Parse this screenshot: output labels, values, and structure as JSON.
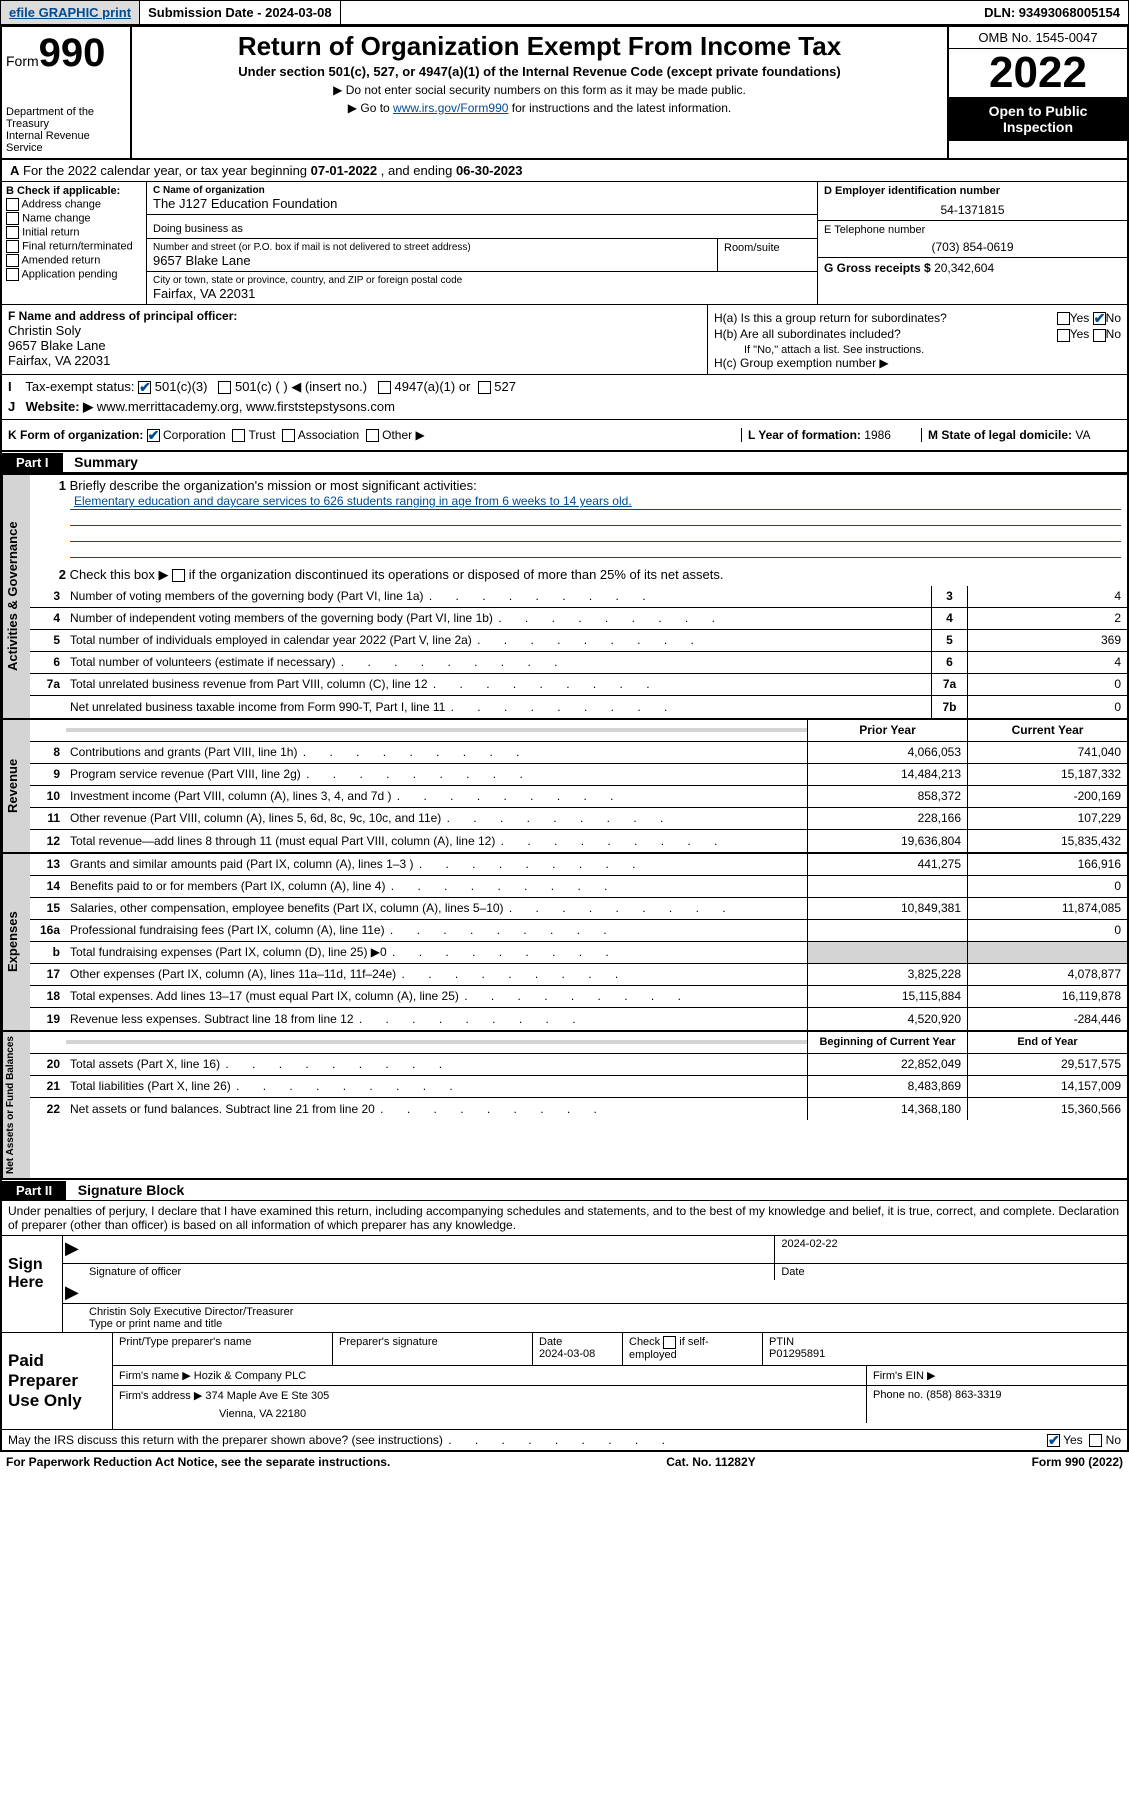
{
  "topbar": {
    "efile": "efile GRAPHIC print",
    "submission": "Submission Date - 2024-03-08",
    "dln": "DLN: 93493068005154"
  },
  "header": {
    "form_label": "Form",
    "form_num": "990",
    "title": "Return of Organization Exempt From Income Tax",
    "subtitle": "Under section 501(c), 527, or 4947(a)(1) of the Internal Revenue Code (except private foundations)",
    "note1": "▶ Do not enter social security numbers on this form as it may be made public.",
    "note2_pre": "▶ Go to ",
    "note2_link": "www.irs.gov/Form990",
    "note2_post": " for instructions and the latest information.",
    "dept": "Department of the Treasury",
    "irs": "Internal Revenue Service",
    "omb": "OMB No. 1545-0047",
    "year": "2022",
    "inspect": "Open to Public Inspection"
  },
  "rowA": {
    "pre": "For the 2022 calendar year, or tax year beginning ",
    "begin": "07-01-2022",
    "mid": " , and ending ",
    "end": "06-30-2023"
  },
  "sectionB": {
    "label": "B Check if applicable:",
    "opts": [
      "Address change",
      "Name change",
      "Initial return",
      "Final return/terminated",
      "Amended return",
      "Application pending"
    ]
  },
  "sectionC": {
    "name_lbl": "C Name of organization",
    "name": "The J127 Education Foundation",
    "dba_lbl": "Doing business as",
    "addr_lbl": "Number and street (or P.O. box if mail is not delivered to street address)",
    "addr": "9657 Blake Lane",
    "room_lbl": "Room/suite",
    "city_lbl": "City or town, state or province, country, and ZIP or foreign postal code",
    "city": "Fairfax, VA  22031"
  },
  "sectionD": {
    "lbl": "D Employer identification number",
    "val": "54-1371815"
  },
  "sectionE": {
    "lbl": "E Telephone number",
    "val": "(703) 854-0619"
  },
  "sectionG": {
    "lbl": "G Gross receipts $",
    "val": "20,342,604"
  },
  "sectionF": {
    "lbl": "F Name and address of principal officer:",
    "name": "Christin Soly",
    "addr": "9657 Blake Lane",
    "city": "Fairfax, VA  22031"
  },
  "sectionH": {
    "a": "H(a)  Is this a group return for subordinates?",
    "b": "H(b)  Are all subordinates included?",
    "bnote": "If \"No,\" attach a list. See instructions.",
    "c": "H(c)  Group exemption number ▶",
    "yes": "Yes",
    "no": "No"
  },
  "rowI": {
    "lbl": "Tax-exempt status:",
    "opts": [
      "501(c)(3)",
      "501(c) (  ) ◀ (insert no.)",
      "4947(a)(1) or",
      "527"
    ]
  },
  "rowJ": {
    "lbl": "Website: ▶",
    "val": "www.merrittacademy.org, www.firststepstysons.com"
  },
  "rowK": {
    "lbl": "K Form of organization:",
    "opts": [
      "Corporation",
      "Trust",
      "Association",
      "Other ▶"
    ]
  },
  "rowL": {
    "lbl": "L Year of formation:",
    "val": "1986"
  },
  "rowM": {
    "lbl": "M State of legal domicile:",
    "val": "VA"
  },
  "part1": {
    "hdr": "Part I",
    "title": "Summary",
    "line1_lbl": "Briefly describe the organization's mission or most significant activities:",
    "line1_val": "Elementary education and daycare services to 626 students ranging in age from 6 weeks to 14 years old.",
    "line2": "Check this box ▶         if the organization discontinued its operations or disposed of more than 25% of its net assets.",
    "rows_gov": [
      {
        "n": "3",
        "d": "Number of voting members of the governing body (Part VI, line 1a)",
        "b": "3",
        "v": "4"
      },
      {
        "n": "4",
        "d": "Number of independent voting members of the governing body (Part VI, line 1b)",
        "b": "4",
        "v": "2"
      },
      {
        "n": "5",
        "d": "Total number of individuals employed in calendar year 2022 (Part V, line 2a)",
        "b": "5",
        "v": "369"
      },
      {
        "n": "6",
        "d": "Total number of volunteers (estimate if necessary)",
        "b": "6",
        "v": "4"
      },
      {
        "n": "7a",
        "d": "Total unrelated business revenue from Part VIII, column (C), line 12",
        "b": "7a",
        "v": "0"
      },
      {
        "n": "",
        "d": "Net unrelated business taxable income from Form 990-T, Part I, line 11",
        "b": "7b",
        "v": "0"
      }
    ],
    "col_hdrs": {
      "prior": "Prior Year",
      "current": "Current Year"
    },
    "rows_rev": [
      {
        "n": "8",
        "d": "Contributions and grants (Part VIII, line 1h)",
        "p": "4,066,053",
        "c": "741,040"
      },
      {
        "n": "9",
        "d": "Program service revenue (Part VIII, line 2g)",
        "p": "14,484,213",
        "c": "15,187,332"
      },
      {
        "n": "10",
        "d": "Investment income (Part VIII, column (A), lines 3, 4, and 7d )",
        "p": "858,372",
        "c": "-200,169"
      },
      {
        "n": "11",
        "d": "Other revenue (Part VIII, column (A), lines 5, 6d, 8c, 9c, 10c, and 11e)",
        "p": "228,166",
        "c": "107,229"
      },
      {
        "n": "12",
        "d": "Total revenue—add lines 8 through 11 (must equal Part VIII, column (A), line 12)",
        "p": "19,636,804",
        "c": "15,835,432"
      }
    ],
    "rows_exp": [
      {
        "n": "13",
        "d": "Grants and similar amounts paid (Part IX, column (A), lines 1–3 )",
        "p": "441,275",
        "c": "166,916"
      },
      {
        "n": "14",
        "d": "Benefits paid to or for members (Part IX, column (A), line 4)",
        "p": "",
        "c": "0"
      },
      {
        "n": "15",
        "d": "Salaries, other compensation, employee benefits (Part IX, column (A), lines 5–10)",
        "p": "10,849,381",
        "c": "11,874,085"
      },
      {
        "n": "16a",
        "d": "Professional fundraising fees (Part IX, column (A), line 11e)",
        "p": "",
        "c": "0"
      },
      {
        "n": "b",
        "d": "Total fundraising expenses (Part IX, column (D), line 25) ▶0",
        "p": "shade",
        "c": "shade"
      },
      {
        "n": "17",
        "d": "Other expenses (Part IX, column (A), lines 11a–11d, 11f–24e)",
        "p": "3,825,228",
        "c": "4,078,877"
      },
      {
        "n": "18",
        "d": "Total expenses. Add lines 13–17 (must equal Part IX, column (A), line 25)",
        "p": "15,115,884",
        "c": "16,119,878"
      },
      {
        "n": "19",
        "d": "Revenue less expenses. Subtract line 18 from line 12",
        "p": "4,520,920",
        "c": "-284,446"
      }
    ],
    "col_hdrs2": {
      "begin": "Beginning of Current Year",
      "end": "End of Year"
    },
    "rows_net": [
      {
        "n": "20",
        "d": "Total assets (Part X, line 16)",
        "p": "22,852,049",
        "c": "29,517,575"
      },
      {
        "n": "21",
        "d": "Total liabilities (Part X, line 26)",
        "p": "8,483,869",
        "c": "14,157,009"
      },
      {
        "n": "22",
        "d": "Net assets or fund balances. Subtract line 21 from line 20",
        "p": "14,368,180",
        "c": "15,360,566"
      }
    ],
    "side_labels": {
      "gov": "Activities & Governance",
      "rev": "Revenue",
      "exp": "Expenses",
      "net": "Net Assets or Fund Balances"
    }
  },
  "part2": {
    "hdr": "Part II",
    "title": "Signature Block",
    "declaration": "Under penalties of perjury, I declare that I have examined this return, including accompanying schedules and statements, and to the best of my knowledge and belief, it is true, correct, and complete. Declaration of preparer (other than officer) is based on all information of which preparer has any knowledge.",
    "sign_here": "Sign Here",
    "sig_officer": "Signature of officer",
    "sig_date": "2024-02-22",
    "date_lbl": "Date",
    "officer_name": "Christin Soly  Executive Director/Treasurer",
    "name_title_lbl": "Type or print name and title",
    "paid": "Paid Preparer Use Only",
    "prep_name_lbl": "Print/Type preparer's name",
    "prep_sig_lbl": "Preparer's signature",
    "prep_date_lbl": "Date",
    "prep_date": "2024-03-08",
    "check_self": "Check         if self-employed",
    "ptin_lbl": "PTIN",
    "ptin": "P01295891",
    "firm_name_lbl": "Firm's name    ▶",
    "firm_name": "Hozik & Company PLC",
    "firm_ein_lbl": "Firm's EIN ▶",
    "firm_addr_lbl": "Firm's address ▶",
    "firm_addr": "374 Maple Ave E Ste 305",
    "firm_city": "Vienna, VA  22180",
    "phone_lbl": "Phone no.",
    "phone": "(858) 863-3319",
    "discuss": "May the IRS discuss this return with the preparer shown above? (see instructions)",
    "yes": "Yes",
    "no": "No"
  },
  "footer": {
    "paperwork": "For Paperwork Reduction Act Notice, see the separate instructions.",
    "cat": "Cat. No. 11282Y",
    "form": "Form 990 (2022)"
  }
}
